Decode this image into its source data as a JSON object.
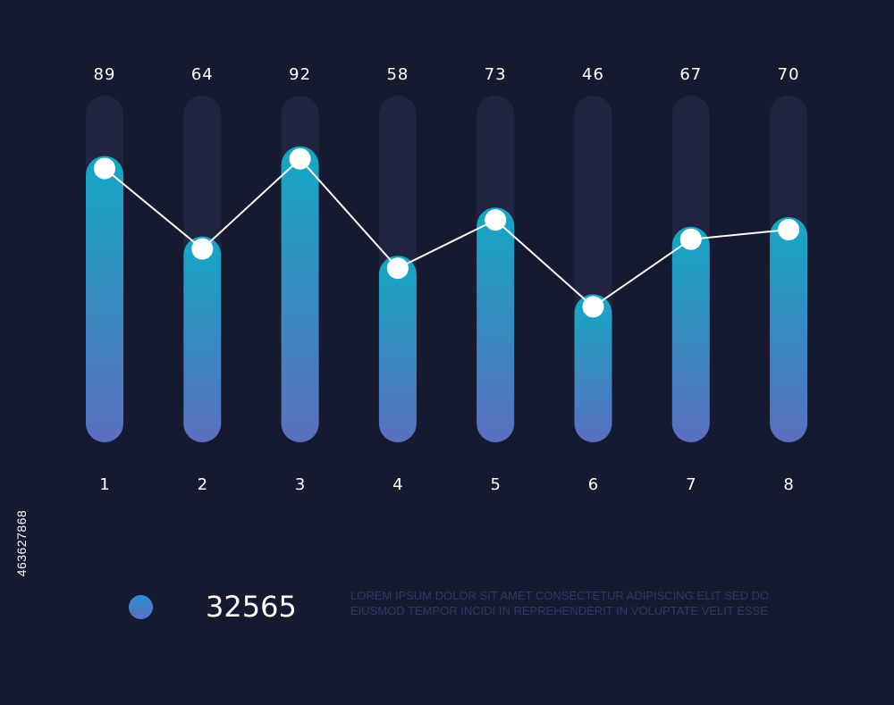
{
  "chart_data": {
    "type": "bar",
    "categories": [
      "1",
      "2",
      "3",
      "4",
      "5",
      "6",
      "7",
      "8"
    ],
    "values": [
      89,
      64,
      92,
      58,
      73,
      46,
      67,
      70
    ],
    "series_line": true,
    "title": "",
    "xlabel": "",
    "ylabel": "",
    "ylim": [
      0,
      100
    ],
    "grid": false
  },
  "summary": {
    "value": "32565",
    "description": "Lorem ipsum dolor sit amet consectetur adipiscing elit sed do eiusmod tempor incidi in reprehenderit in voluptate velit esse"
  },
  "watermark": {
    "stock_id": "463627868"
  },
  "colors": {
    "background": "#161a31",
    "track": "#20243f",
    "bar_top": "#13a8c4",
    "bar_bottom": "#5b6fbf",
    "line": "#ffffff",
    "point": "#ffffff",
    "legend_dot": "#3d82cc",
    "description_text": "#2f3866"
  }
}
